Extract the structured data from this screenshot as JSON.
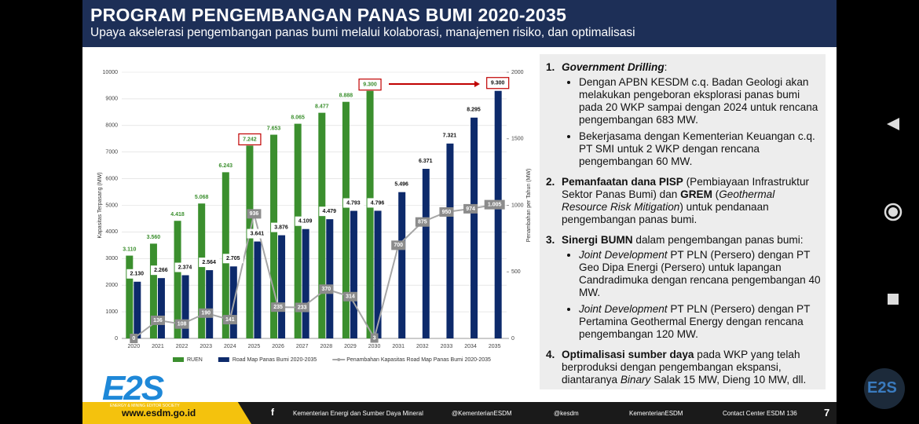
{
  "header": {
    "title": "PROGRAM PENGEMBANGAN PANAS BUMI 2020-2035",
    "subtitle": "Upaya akselerasi pengembangan panas bumi melalui kolaborasi, manajemen risiko, dan optimalisasi"
  },
  "chart_data": {
    "type": "bar",
    "categories": [
      "2020",
      "2021",
      "2022",
      "2023",
      "2024",
      "2025",
      "2026",
      "2027",
      "2028",
      "2029",
      "2030",
      "2031",
      "2032",
      "2033",
      "2034",
      "2035"
    ],
    "series": [
      {
        "name": "RUEN",
        "color": "#3b8f2e",
        "values": [
          3110,
          3560,
          4418,
          5068,
          6243,
          7242,
          7653,
          8065,
          8477,
          8888,
          9300,
          null,
          null,
          null,
          null,
          null
        ],
        "value_labels": [
          "3.110",
          "3.560",
          "4.418",
          "5.068",
          "6.243",
          "7.242",
          "7.653",
          "8.065",
          "8.477",
          "8.888",
          "9.300",
          null,
          null,
          null,
          null,
          null
        ]
      },
      {
        "name": "Road Map Panas Bumi 2020-2035",
        "color": "#0d2a6b",
        "values": [
          2130,
          2266,
          2374,
          2564,
          2705,
          3641,
          3876,
          4109,
          4479,
          4793,
          4796,
          5496,
          6371,
          7321,
          8295,
          9300
        ],
        "value_labels": [
          "2.130",
          "2.266",
          "2.374",
          "2.564",
          "2.705",
          "3.641",
          "3.876",
          "4.109",
          "4.479",
          "4.793",
          "4.796",
          "5.496",
          "6.371",
          "7.321",
          "8.295",
          "9.300"
        ]
      },
      {
        "name": "Penambahan Kapasitas Road Map Panas Bumi 2020-2035",
        "type": "line",
        "axis": "y2",
        "color": "#a6a6a6",
        "values": [
          0,
          136,
          108,
          190,
          141,
          936,
          235,
          233,
          370,
          314,
          3,
          700,
          875,
          950,
          974,
          1005
        ],
        "value_labels": [
          "0",
          "136",
          "108",
          "190",
          "141",
          "936",
          "235",
          "233",
          "370",
          "314",
          "3",
          "700",
          "875",
          "950",
          "974",
          "1.005"
        ]
      }
    ],
    "ylabel": "Kapasitas Terpasang (MW)",
    "y2label": "Penambahan per Tahun (MW)",
    "ylim": [
      0,
      10000
    ],
    "yticks": [
      0,
      1000,
      2000,
      3000,
      4000,
      5000,
      6000,
      7000,
      8000,
      9000,
      10000
    ],
    "y2lim": [
      0,
      2000
    ],
    "y2ticks": [
      0,
      500,
      1000,
      1500,
      2000
    ],
    "grid": true
  },
  "panel": {
    "items": [
      {
        "number": "1.",
        "runs": [
          "Government Drilling",
          ":"
        ],
        "bullets": [
          {
            "runs": [
              "Dengan APBN KESDM c.q. Badan Geologi akan melakukan pengeboran eksplorasi panas bumi pada 20 WKP sampai dengan 2024 untuk rencana pengembangan 683 MW."
            ]
          },
          {
            "runs": [
              "Bekerjasama dengan Kementerian Keuangan c.q. PT SMI untuk 2 WKP dengan rencana pengembangan 60 MW."
            ]
          }
        ]
      },
      {
        "number": "2.",
        "runs": [
          "Pemanfaatan dana PISP",
          " (Pembiayaan Infrastruktur Sektor Panas Bumi) dan ",
          "GREM",
          " (",
          "Geothermal Resource Risk Mitigation",
          ") untuk pendanaan pengembangan panas bumi."
        ]
      },
      {
        "number": "3.",
        "runs": [
          "Sinergi BUMN",
          " dalam pengembangan panas bumi:"
        ],
        "bullets": [
          {
            "runs": [
              "Joint Development",
              " PT PLN (Persero) dengan PT Geo Dipa Energi (Persero) untuk lapangan Candradimuka dengan rencana pengembangan 40 MW."
            ]
          },
          {
            "runs": [
              "Joint Development",
              " PT PLN (Persero) dengan PT Pertamina Geothermal Energy dengan rencana pengembangan 120 MW."
            ]
          }
        ]
      },
      {
        "number": "4.",
        "runs": [
          "Optimalisasi sumber daya",
          " pada WKP yang telah berproduksi dengan pengembangan ekspansi, diantaranya ",
          "Binary",
          " Salak 15 MW, Dieng 10 MW, dll."
        ]
      }
    ]
  },
  "logo": {
    "text": "E2S",
    "tagline": "ENERGY & MINING EDITOR SOCIETY"
  },
  "footer": {
    "website": "www.esdm.go.id",
    "facebook": "Kementerian Energi dan Sumber Daya Mineral",
    "twitter": "@KementerianESDM",
    "instagram": "@kesdm",
    "youtube": "KementerianESDM",
    "contact": "Contact Center ESDM 136",
    "page": 7
  },
  "watermark": "E2S"
}
